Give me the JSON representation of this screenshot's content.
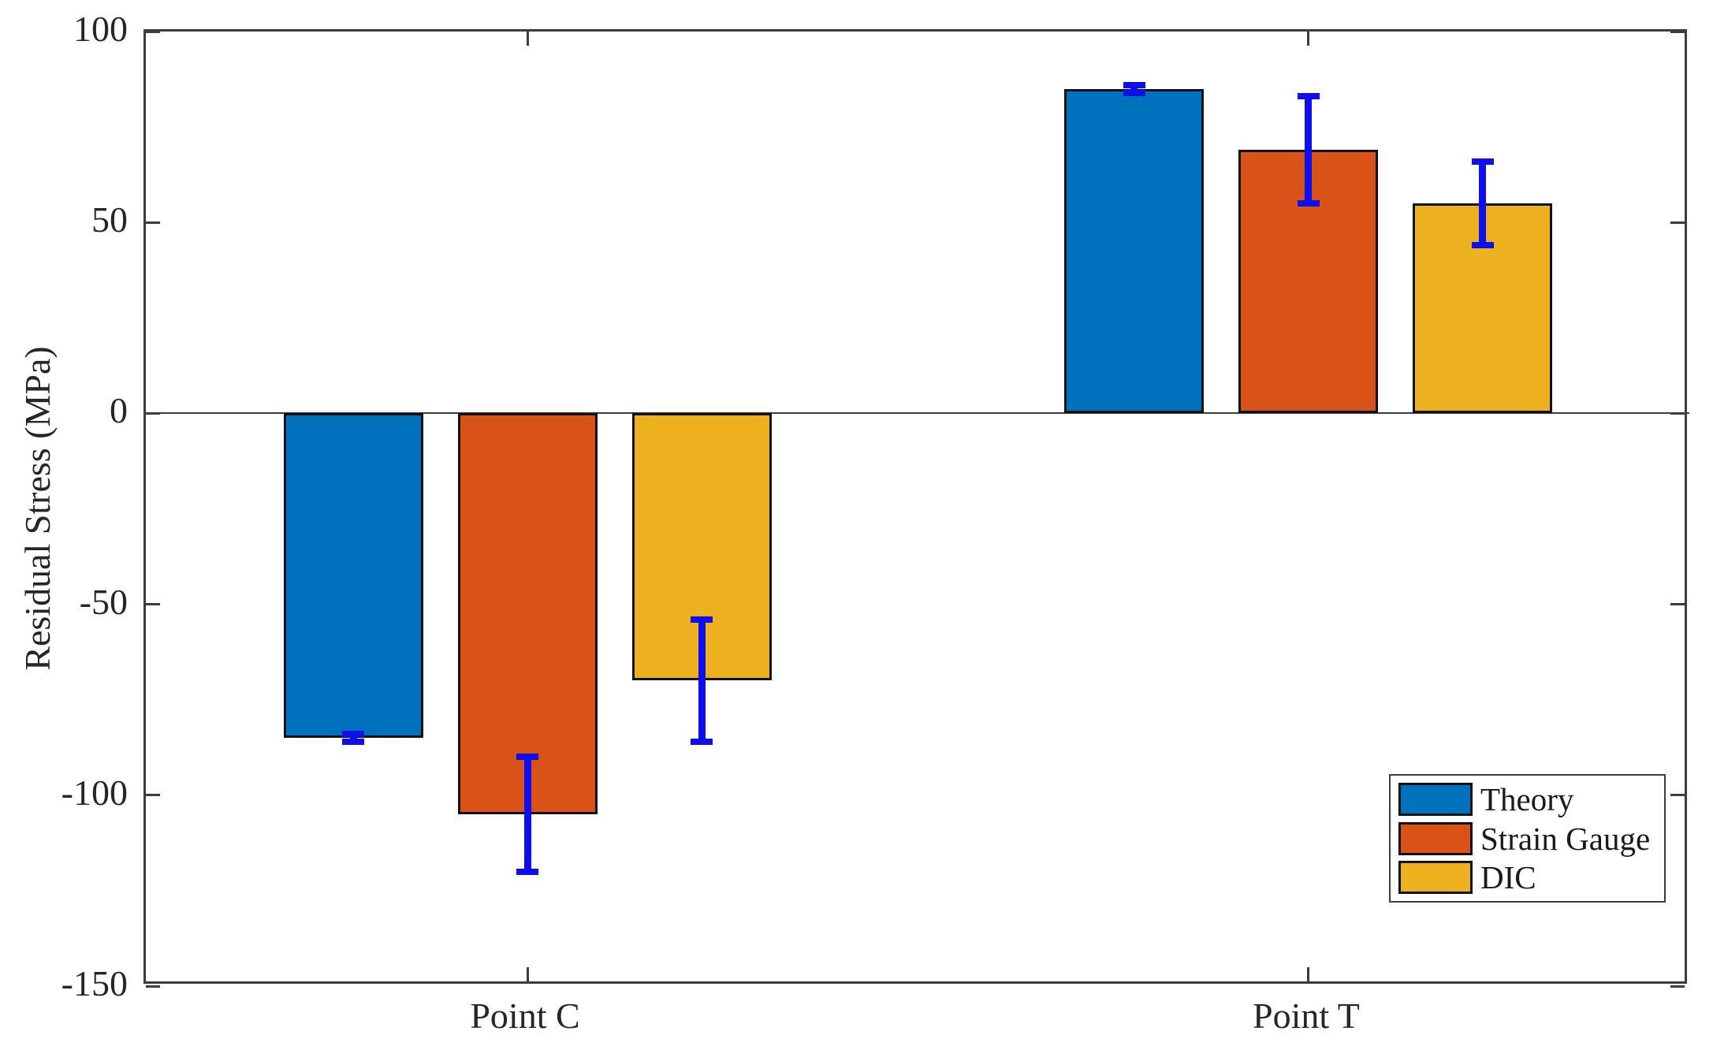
{
  "figure": {
    "background_color": "#ffffff",
    "axis_color": "#3d3d3d",
    "bar_edge_color": "#111111"
  },
  "chart_data": {
    "type": "bar",
    "title": "",
    "xlabel": "",
    "ylabel": "Residual Stress (MPa)",
    "categories": [
      "Point C",
      "Point T"
    ],
    "series": [
      {
        "name": "Theory",
        "color": "#0072BD",
        "values": [
          -85,
          85
        ],
        "errors": [
          1,
          1
        ]
      },
      {
        "name": "Strain Gauge",
        "color": "#D95319",
        "values": [
          -105,
          69
        ],
        "errors": [
          15,
          14
        ]
      },
      {
        "name": "DIC",
        "color": "#EDB120",
        "values": [
          -70,
          55
        ],
        "errors": [
          16,
          11
        ]
      }
    ],
    "error_bar_color": "#0f0fee",
    "ylim": [
      -150,
      100
    ],
    "yticks": [
      100,
      50,
      0,
      -50,
      -100,
      -150
    ],
    "grid": false,
    "legend_position": "lower right",
    "legend_entries": [
      "Theory",
      "Strain Gauge",
      "DIC"
    ]
  }
}
